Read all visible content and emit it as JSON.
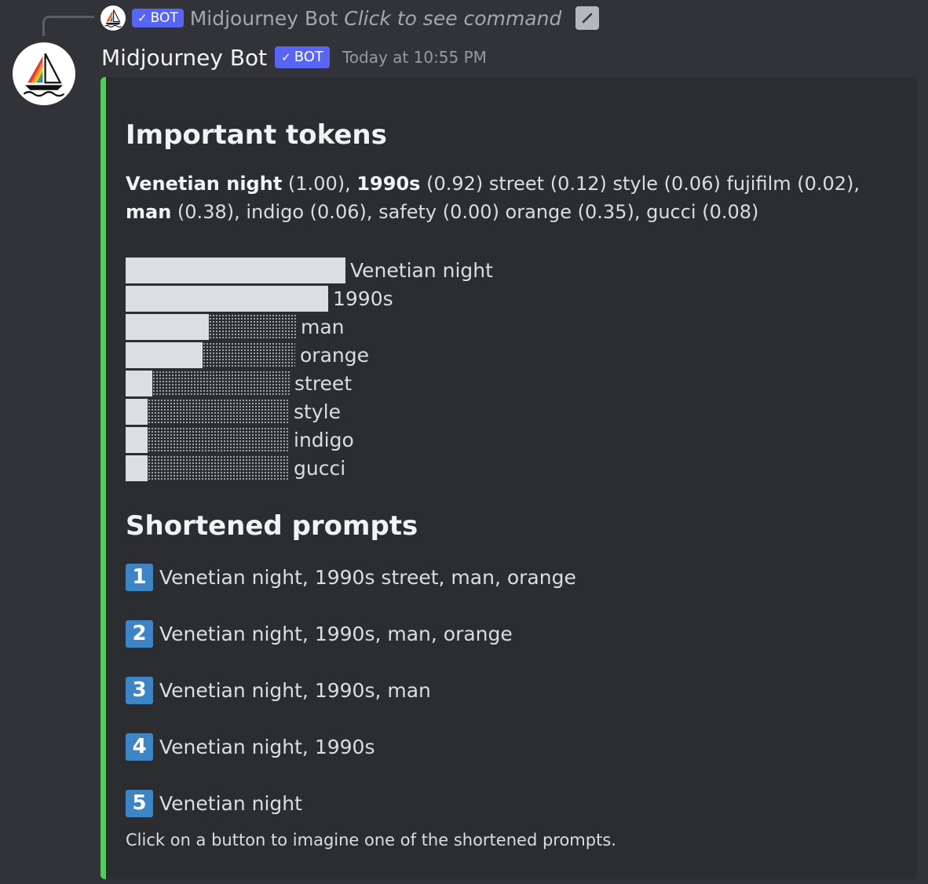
{
  "reply": {
    "author": "Midjourney Bot",
    "bot_tag": "BOT",
    "command_text": "Click to see command"
  },
  "message": {
    "author": "Midjourney Bot",
    "bot_tag": "BOT",
    "timestamp": "Today at 10:55 PM"
  },
  "embed": {
    "accent_color": "#57c760",
    "important_title": "Important tokens",
    "tokens_line": [
      {
        "text": "Venetian night",
        "bold": true
      },
      {
        "text": " (1.00), ",
        "bold": false
      },
      {
        "text": "1990s",
        "bold": true
      },
      {
        "text": " (0.92) street (0.12) style (0.06) fujifilm (0.02), ",
        "bold": false
      },
      {
        "text": "man",
        "bold": true
      },
      {
        "text": " (0.38), indigo (0.06), safety (0.00) orange (0.35), gucci (0.08)",
        "bold": false
      }
    ],
    "chart_data": {
      "type": "bar",
      "orientation": "horizontal",
      "categories": [
        "Venetian night",
        "1990s",
        "man",
        "orange",
        "street",
        "style",
        "indigo",
        "gucci"
      ],
      "values": [
        1.0,
        0.92,
        0.38,
        0.35,
        0.12,
        0.06,
        0.06,
        0.08
      ],
      "xlim": [
        0,
        1
      ]
    },
    "shortened_title": "Shortened prompts",
    "prompts": [
      {
        "num": "1",
        "text": "Venetian night, 1990s street, man, orange"
      },
      {
        "num": "2",
        "text": "Venetian night, 1990s, man, orange"
      },
      {
        "num": "3",
        "text": "Venetian night, 1990s, man"
      },
      {
        "num": "4",
        "text": "Venetian night, 1990s"
      },
      {
        "num": "5",
        "text": "Venetian night"
      }
    ],
    "footer": "Click on a button to imagine one of the shortened prompts."
  }
}
